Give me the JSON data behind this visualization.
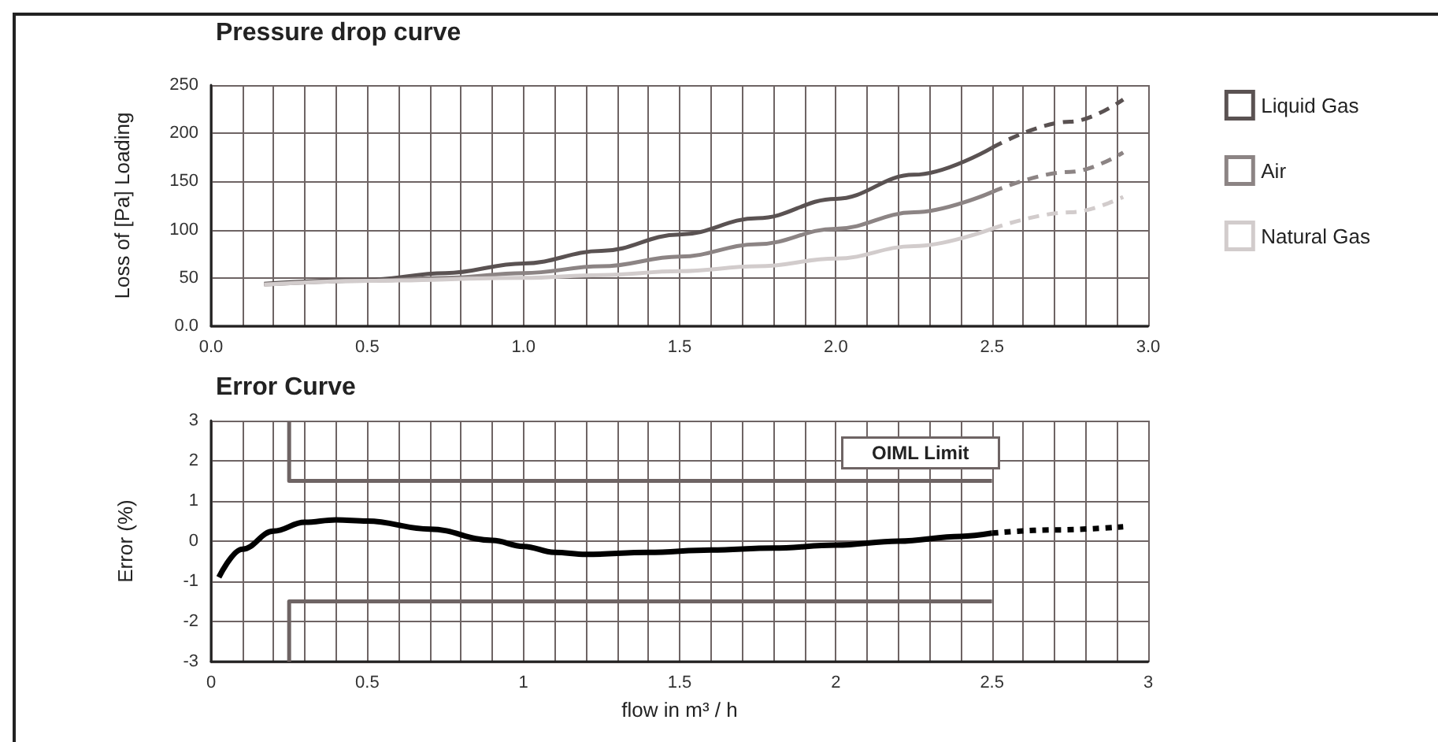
{
  "chart_data": [
    {
      "type": "line",
      "title": "Pressure drop curve",
      "ylabel": "Loss of [Pa] Loading",
      "xlim": [
        0,
        3
      ],
      "ylim": [
        0,
        250
      ],
      "xticks": [
        {
          "value": 0,
          "label": "0.0"
        },
        0.5,
        {
          "value": 1,
          "label": "1.0"
        },
        1.5,
        {
          "value": 2,
          "label": "2.0"
        },
        2.5,
        {
          "value": 3,
          "label": "3.0"
        }
      ],
      "yticks": [
        {
          "value": 0,
          "label": "0.0"
        },
        50,
        100,
        150,
        200,
        250
      ],
      "grid": true,
      "legend": "top right",
      "series": [
        {
          "name": "Liquid Gas",
          "color": "#5a5252",
          "x": [
            0.17,
            0.5,
            0.75,
            1.0,
            1.25,
            1.5,
            1.75,
            2.0,
            2.25,
            2.5
          ],
          "values": [
            44,
            48,
            55,
            65,
            78,
            95,
            112,
            132,
            157,
            185
          ],
          "line_style": "solid"
        },
        {
          "name": "Air",
          "color": "#8c8484",
          "x": [
            0.17,
            0.5,
            0.75,
            1.0,
            1.25,
            1.5,
            1.75,
            2.0,
            2.25,
            2.5
          ],
          "values": [
            43,
            47,
            50,
            55,
            62,
            72,
            85,
            101,
            118,
            139
          ],
          "line_style": "solid"
        },
        {
          "name": "Natural Gas",
          "color": "#d2cccc",
          "x": [
            0.17,
            0.5,
            1.0,
            1.25,
            1.5,
            1.75,
            2.0,
            2.25,
            2.5
          ],
          "values": [
            43,
            47,
            50,
            53,
            57,
            62,
            70,
            83,
            101
          ],
          "line_style": "solid"
        },
        {
          "color": "#5a5252",
          "x": [
            2.5,
            2.75,
            2.92
          ],
          "values": [
            185,
            212,
            235
          ],
          "line_style": "dashed"
        },
        {
          "color": "#8c8484",
          "x": [
            2.5,
            2.75,
            2.92
          ],
          "values": [
            139,
            160,
            180
          ],
          "line_style": "dashed"
        },
        {
          "color": "#d2cccc",
          "x": [
            2.5,
            2.75,
            2.92
          ],
          "values": [
            101,
            118,
            134
          ],
          "line_style": "dashed"
        }
      ]
    },
    {
      "type": "line",
      "title": "Error Curve",
      "xlabel": "flow in m³ / h",
      "ylabel": "Error (%)",
      "xlim": [
        0,
        3
      ],
      "ylim": [
        -3,
        3
      ],
      "xticks": [
        0,
        0.5,
        1,
        1.5,
        2,
        2.5,
        3
      ],
      "yticks": [
        -3,
        -2,
        -1,
        0,
        1,
        2,
        3
      ],
      "grid": true,
      "annotations": [
        "OIML Limit"
      ],
      "series": [
        {
          "color": "#000000",
          "x": [
            0.025,
            0.1,
            0.2,
            0.3,
            0.4,
            0.5,
            0.7,
            0.9,
            1.0,
            1.1,
            1.2,
            1.4,
            1.6,
            1.8,
            2.0,
            2.2,
            2.4,
            2.5
          ],
          "values": [
            -0.9,
            -0.2,
            0.25,
            0.47,
            0.53,
            0.5,
            0.3,
            0.02,
            -0.13,
            -0.28,
            -0.33,
            -0.28,
            -0.22,
            -0.17,
            -0.1,
            0,
            0.12,
            0.2
          ],
          "line_style": "solid"
        },
        {
          "color": "#000000",
          "x": [
            2.5,
            2.7,
            2.92
          ],
          "values": [
            0.2,
            0.28,
            0.36
          ],
          "line_style": "dotted"
        },
        {
          "color": "#6e6464",
          "x": [
            0.25,
            0.25,
            2.5
          ],
          "values": [
            3,
            1.5,
            1.5
          ],
          "line_style": "solid"
        },
        {
          "color": "#6e6464",
          "x": [
            0.25,
            0.25,
            2.5
          ],
          "values": [
            -3,
            -1.5,
            -1.5
          ],
          "line_style": "solid"
        }
      ]
    }
  ]
}
